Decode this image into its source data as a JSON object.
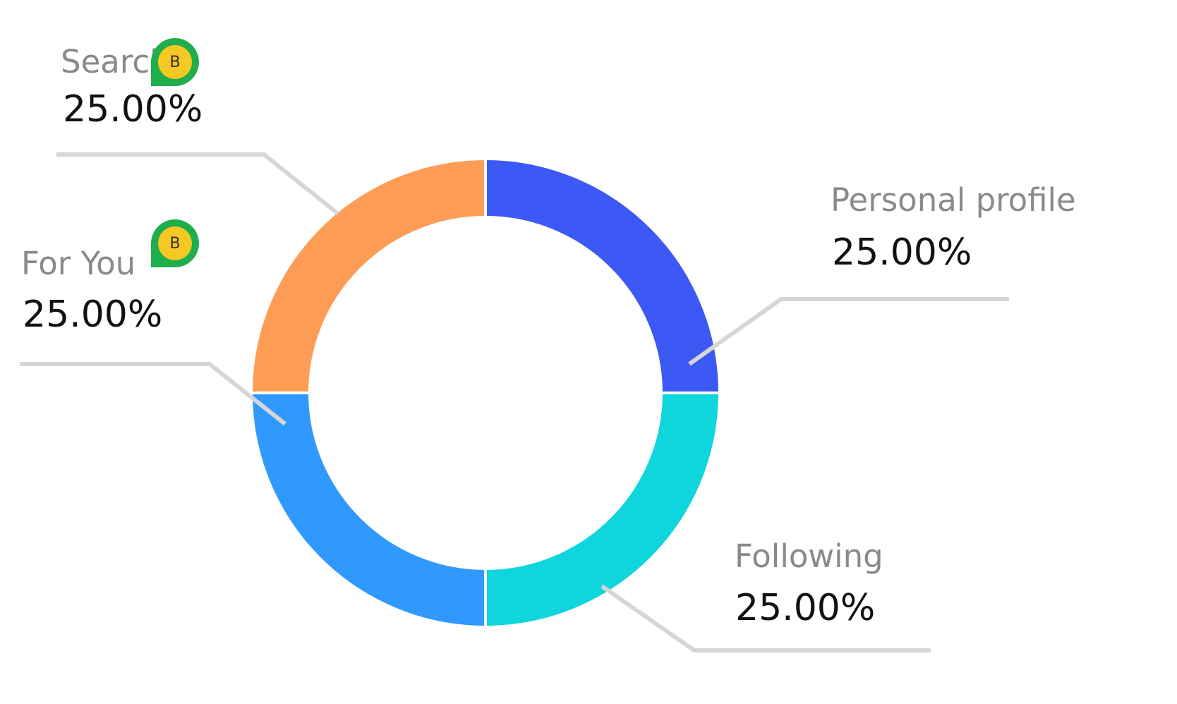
{
  "chart_data": {
    "type": "donut",
    "categories": [
      "Personal profile",
      "Following",
      "For You",
      "Search"
    ],
    "values": [
      25,
      25,
      25,
      25
    ],
    "value_labels": [
      "25.00%",
      "25.00%",
      "25.00%",
      "25.00%"
    ],
    "colors": [
      "#3c58f5",
      "#0fd5dc",
      "#3099fd",
      "#fd9d55"
    ],
    "badges": [
      "B",
      "B"
    ]
  }
}
